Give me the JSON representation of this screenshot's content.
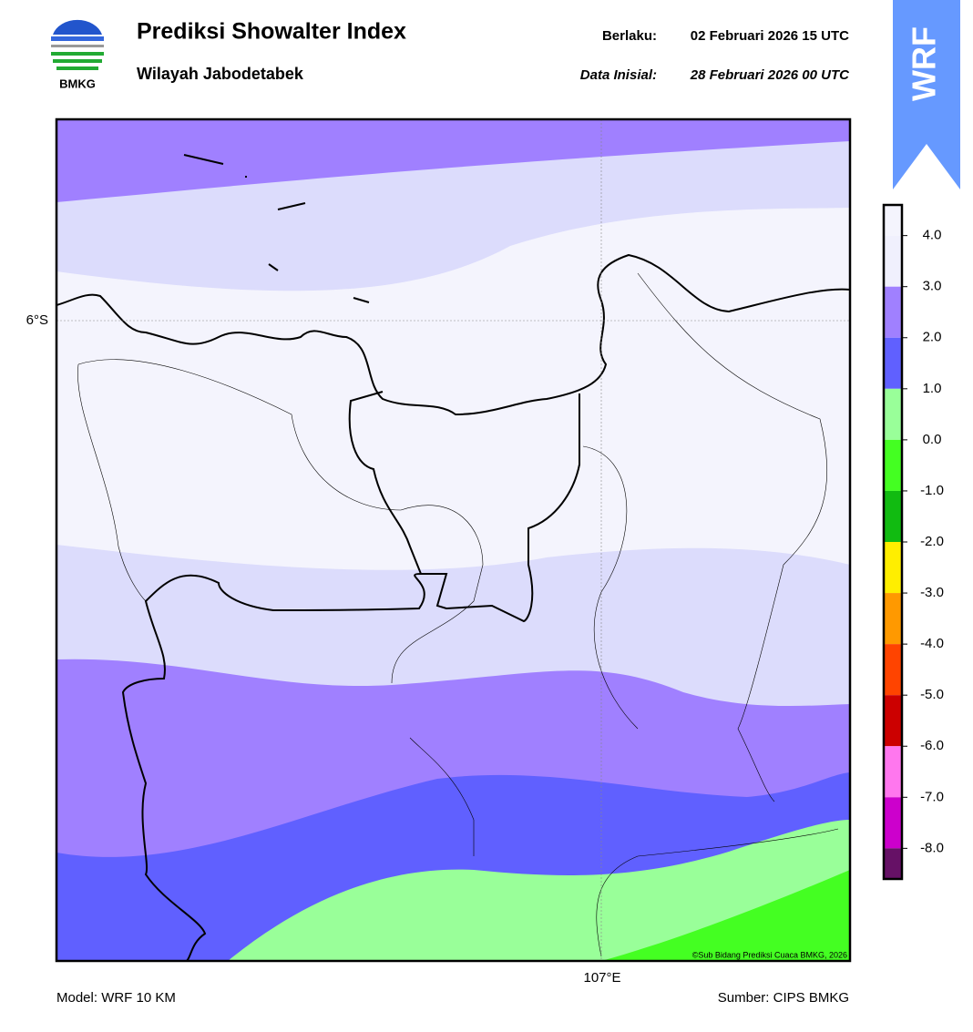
{
  "header": {
    "title": "Prediksi Showalter Index",
    "subtitle": "Wilayah Jabodetabek",
    "valid_label": "Berlaku:",
    "valid": "02 Februari 2026 15 UTC",
    "init_label": "Data Inisial:",
    "init": "28 Februari 2026 00 UTC",
    "logo": "BMKG",
    "badge": "WRF"
  },
  "map": {
    "lat_label": "6°S",
    "lon_label": "107°E",
    "credit": "©Sub Bidang Prediksi Cuaca BMKG, 2026"
  },
  "colorbar": {
    "clim": [
      -8.6,
      4.6
    ],
    "ticks": [
      {
        "value": 4,
        "label": "4.0"
      },
      {
        "value": 3,
        "label": "3.0"
      },
      {
        "value": 2,
        "label": "2.0"
      },
      {
        "value": 1,
        "label": "1.0"
      },
      {
        "value": 0,
        "label": "0.0"
      },
      {
        "value": -1,
        "label": "-1.0"
      },
      {
        "value": -2,
        "label": "-2.0"
      },
      {
        "value": -3,
        "label": "-3.0"
      },
      {
        "value": -4,
        "label": "-4.0"
      },
      {
        "value": -5,
        "label": "-5.0"
      },
      {
        "value": -6,
        "label": "-6.0"
      },
      {
        "value": -7,
        "label": "-7.0"
      },
      {
        "value": -8,
        "label": "-8.0"
      }
    ],
    "colors": [
      "#f4f4fd",
      "#f0f0fd",
      "#a080ff",
      "#6060ff",
      "#99ff99",
      "#44ff22",
      "#11bb11",
      "#ffee00",
      "#ff9900",
      "#ff4400",
      "#cc0000",
      "#ff77ee",
      "#cc00cc",
      "#661166"
    ]
  },
  "footer": {
    "model": "Model: WRF 10 KM",
    "source": "Sumber: CIPS BMKG"
  }
}
